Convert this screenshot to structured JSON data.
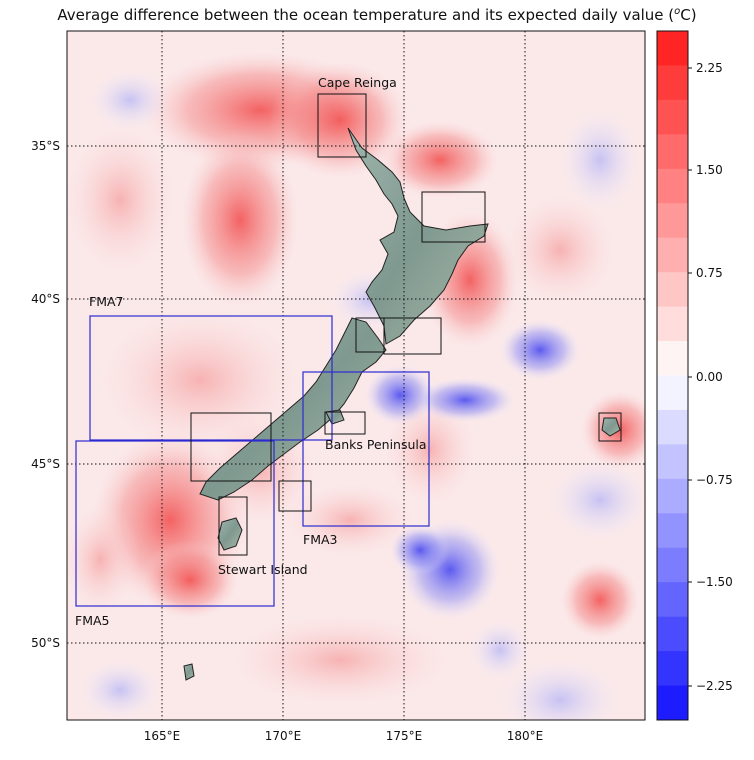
{
  "title": "Average difference between the ocean temperature and its expected daily value (",
  "title_unit": "o",
  "title_unit_tail": "C)",
  "axes": {
    "lat_ticks": [
      "35°S",
      "40°S",
      "45°S",
      "50°S"
    ],
    "lon_ticks": [
      "165°E",
      "170°E",
      "175°E",
      "180°E"
    ]
  },
  "labels": {
    "cape_reinga": "Cape Reinga",
    "fma7": "FMA7",
    "banks_peninsula": "Banks Peninsula",
    "fma3": "FMA3",
    "stewart_island": "Stewart Island",
    "fma5": "FMA5"
  },
  "colorbar": {
    "ticks": [
      "2.25",
      "1.50",
      "0.75",
      "0.00",
      "−0.75",
      "−1.50",
      "−2.25"
    ],
    "max_color": "#ff1a1a",
    "min_color": "#1010ff"
  },
  "colors": {
    "warm": "#f05050",
    "cool": "#5a5af0",
    "land": "#8fa8a0",
    "fma_box": "#2b2bd0",
    "site_box": "#111111"
  }
}
